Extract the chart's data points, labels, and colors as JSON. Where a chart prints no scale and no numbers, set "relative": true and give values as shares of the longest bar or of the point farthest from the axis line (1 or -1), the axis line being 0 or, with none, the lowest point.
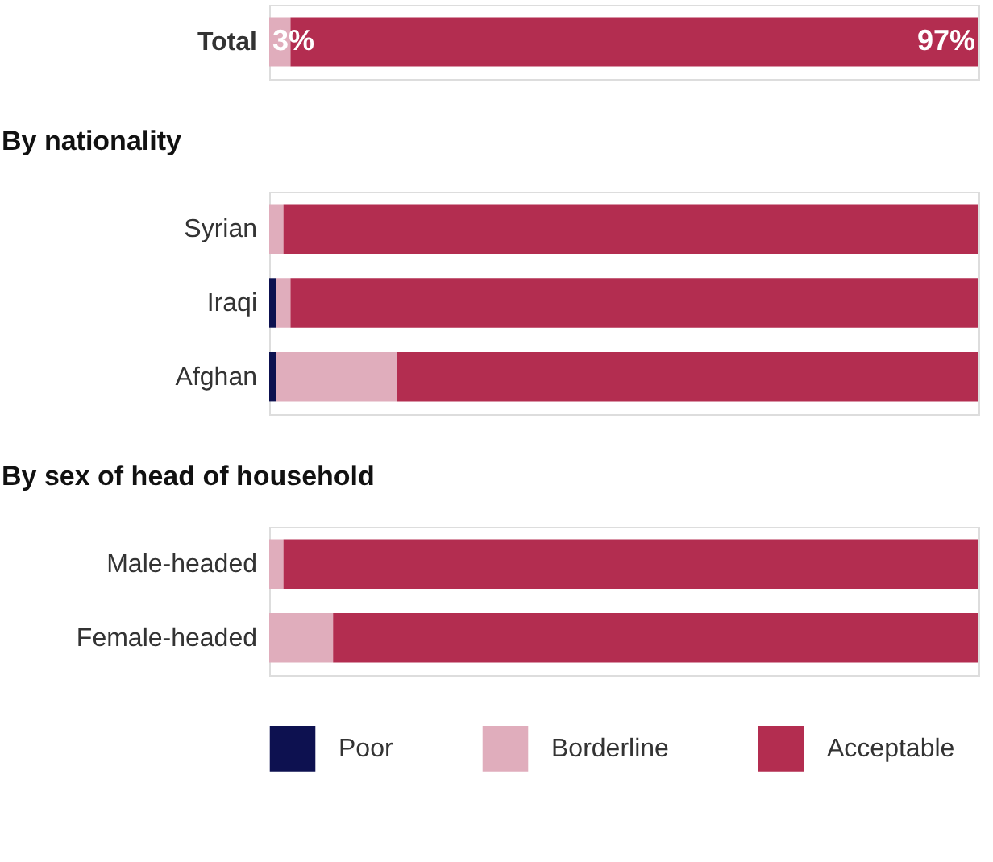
{
  "chart_data": [
    {
      "type": "bar",
      "orientation": "horizontal",
      "stacked": true,
      "categories": [
        "Total"
      ],
      "xlim": [
        0,
        100
      ],
      "tick_labels": "y",
      "legend": "bottom",
      "series": [
        {
          "name": "Borderline",
          "color": "#e0adbc",
          "values": [
            3
          ],
          "value_labels": [
            "3%"
          ]
        },
        {
          "name": "Acceptable",
          "color": "#b32d50",
          "values": [
            97
          ],
          "value_labels": [
            "97%"
          ]
        }
      ]
    },
    {
      "type": "bar",
      "orientation": "horizontal",
      "stacked": true,
      "relative": true,
      "title": "By nationality",
      "categories": [
        "Syrian",
        "Iraqi",
        "Afghan"
      ],
      "tick_labels": "y",
      "legend": "bottom",
      "series": [
        {
          "name": "Poor",
          "color": "#0d1150",
          "values": [
            0,
            0.01,
            0.01
          ]
        },
        {
          "name": "Borderline",
          "color": "#e0adbc",
          "values": [
            0.02,
            0.02,
            0.17
          ]
        },
        {
          "name": "Acceptable",
          "color": "#b32d50",
          "values": [
            0.98,
            0.97,
            0.82
          ]
        }
      ]
    },
    {
      "type": "bar",
      "orientation": "horizontal",
      "stacked": true,
      "relative": true,
      "title": "By sex of head of household",
      "categories": [
        "Male-headed",
        "Female-headed"
      ],
      "tick_labels": "y",
      "legend": "bottom",
      "series": [
        {
          "name": "Poor",
          "color": "#0d1150",
          "values": [
            0,
            0
          ]
        },
        {
          "name": "Borderline",
          "color": "#e0adbc",
          "values": [
            0.02,
            0.09
          ]
        },
        {
          "name": "Acceptable",
          "color": "#b32d50",
          "values": [
            0.98,
            0.91
          ]
        }
      ]
    }
  ]
}
